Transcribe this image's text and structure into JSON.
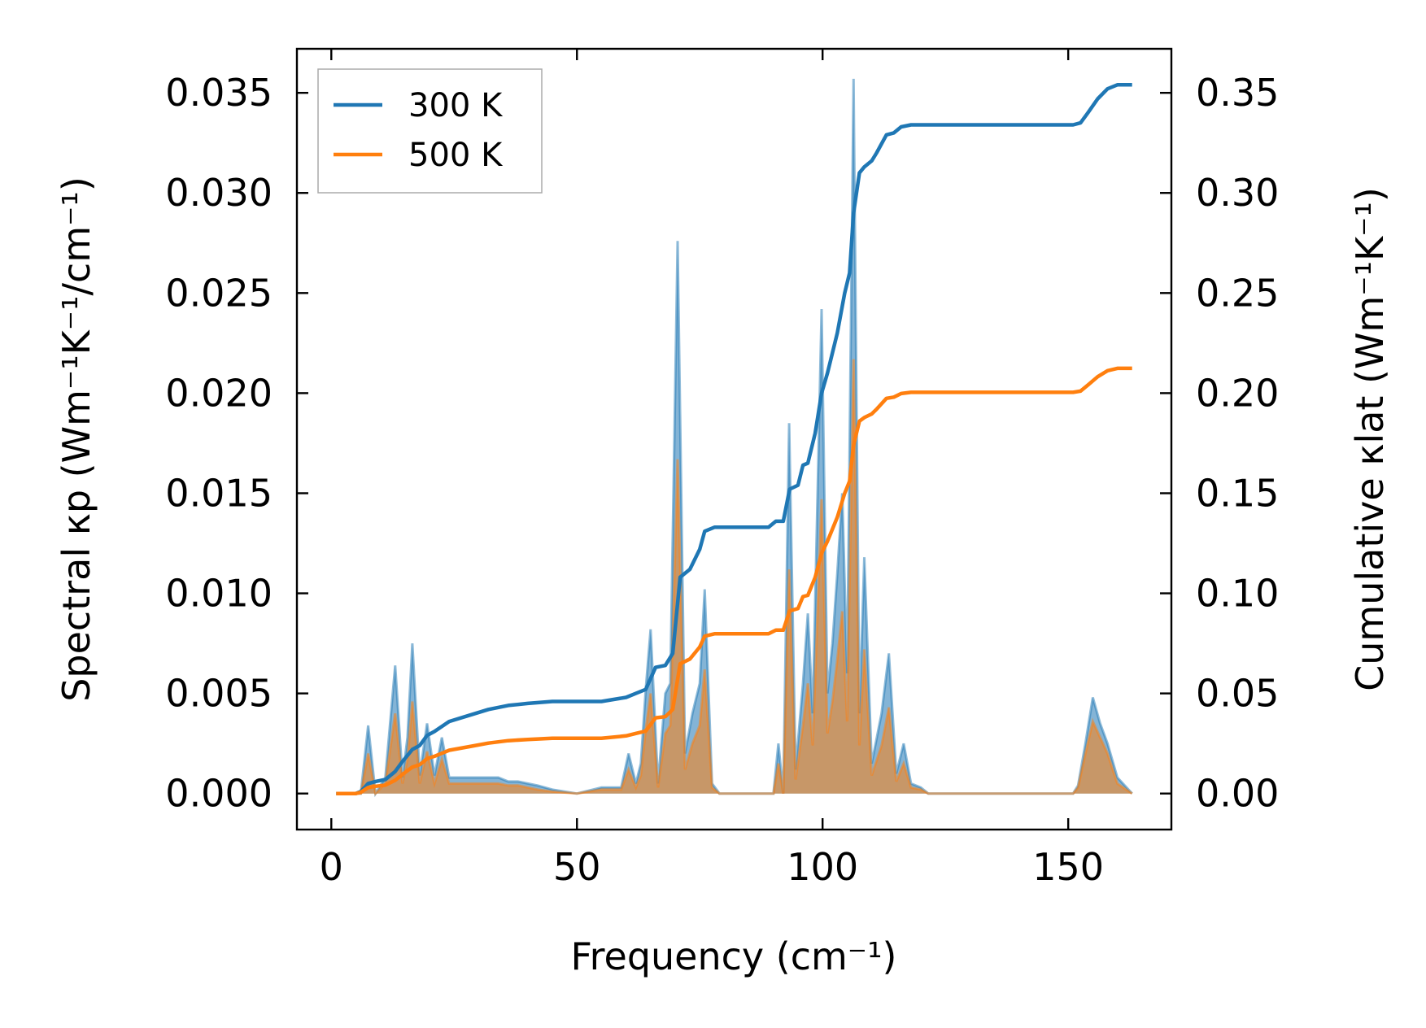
{
  "chart_data": {
    "type": "line",
    "xlabel": "Frequency (cm⁻¹)",
    "ylabel_left": "Spectral κp (Wm⁻¹K⁻¹/cm⁻¹)",
    "ylabel_right": "Cumulative κlat (Wm⁻¹K⁻¹)",
    "xlim": [
      -7,
      171
    ],
    "ylim_left": [
      -0.0018,
      0.0372
    ],
    "ylim_right": [
      -0.018,
      0.372
    ],
    "x_ticks": [
      0,
      50,
      100,
      150
    ],
    "x_tick_labels": [
      "0",
      "50",
      "100",
      "150"
    ],
    "y_left_ticks": [
      0,
      0.005,
      0.01,
      0.015,
      0.02,
      0.025,
      0.03,
      0.035
    ],
    "y_left_tick_labels": [
      "0.000",
      "0.005",
      "0.010",
      "0.015",
      "0.020",
      "0.025",
      "0.030",
      "0.035"
    ],
    "y_right_ticks": [
      0,
      0.05,
      0.1,
      0.15,
      0.2,
      0.25,
      0.3,
      0.35
    ],
    "y_right_tick_labels": [
      "0.00",
      "0.05",
      "0.10",
      "0.15",
      "0.20",
      "0.25",
      "0.30",
      "0.35"
    ],
    "legend": {
      "position": "top-left",
      "entries": [
        "300 K",
        "500 K"
      ]
    },
    "grid": false,
    "colors": {
      "300K": "#1f77b4",
      "500K": "#ff7f0e",
      "fill_300K": "#1f77b4",
      "fill_500K": "#ff7f0e"
    },
    "series": [
      {
        "name": "300 K",
        "kind": "spectral-fill",
        "axis": "left",
        "x": [
          1,
          6,
          7.5,
          9,
          11,
          13,
          14.5,
          15.5,
          16.5,
          18,
          19.5,
          21,
          22.5,
          24,
          26,
          28,
          30,
          32,
          34,
          36,
          38,
          40,
          42,
          45,
          50,
          55,
          59,
          60.5,
          62,
          63,
          64,
          65,
          66.5,
          68,
          69,
          70.5,
          72,
          73.5,
          75,
          76,
          77.5,
          79,
          90,
          91,
          92,
          93.2,
          94.5,
          96,
          97,
          98,
          99.8,
          101,
          102,
          103,
          104,
          105,
          106.3,
          107.5,
          108.5,
          110,
          112,
          113.5,
          115,
          116.5,
          118,
          120,
          121.5,
          151,
          152,
          153.5,
          155,
          156.5,
          158,
          160,
          163
        ],
        "values": [
          0,
          0,
          0.0034,
          0,
          0.0008,
          0.0064,
          0.0008,
          0.0028,
          0.0075,
          0.0009,
          0.0035,
          0.0009,
          0.0028,
          0.0008,
          0.0008,
          0.0008,
          0.0008,
          0.0008,
          0.0008,
          0.0006,
          0.0006,
          0.0005,
          0.0004,
          0.0002,
          0,
          0.0003,
          0.0003,
          0.002,
          0.0005,
          0.0015,
          0.0052,
          0.0082,
          0.0005,
          0.005,
          0.0055,
          0.0276,
          0.002,
          0.004,
          0.0055,
          0.0102,
          0.0005,
          0,
          0,
          0.0025,
          0,
          0.0185,
          0.0012,
          0.0055,
          0.009,
          0.004,
          0.0242,
          0.005,
          0.0075,
          0.011,
          0.015,
          0.006,
          0.0357,
          0.004,
          0.0118,
          0.0015,
          0.004,
          0.007,
          0.001,
          0.0025,
          0.0005,
          0.0003,
          0,
          0,
          0.0004,
          0.0025,
          0.0048,
          0.0035,
          0.0025,
          0.0008,
          0
        ]
      },
      {
        "name": "500 K",
        "kind": "spectral-fill",
        "axis": "left",
        "x": [
          1,
          6,
          7.5,
          9,
          11,
          13,
          14.5,
          15.5,
          16.5,
          18,
          19.5,
          21,
          22.5,
          24,
          26,
          28,
          30,
          32,
          34,
          36,
          38,
          40,
          42,
          45,
          50,
          55,
          59,
          60.5,
          62,
          63,
          64,
          65,
          66.5,
          68,
          69,
          70.5,
          72,
          73.5,
          75,
          76,
          77.5,
          79,
          90,
          91,
          92,
          93.2,
          94.5,
          96,
          97,
          98,
          99.8,
          101,
          102,
          103,
          104,
          105,
          106.3,
          107.5,
          108.5,
          110,
          112,
          113.5,
          115,
          116.5,
          118,
          120,
          121.5,
          151,
          152,
          153.5,
          155,
          156.5,
          158,
          160,
          163
        ],
        "values": [
          0,
          0,
          0.002,
          0,
          0.0005,
          0.004,
          0.0005,
          0.0017,
          0.0046,
          0.0005,
          0.0021,
          0.0005,
          0.0017,
          0.0005,
          0.0005,
          0.0005,
          0.0005,
          0.0005,
          0.0005,
          0.0004,
          0.0004,
          0.0003,
          0.0002,
          0.0001,
          0,
          0.0002,
          0.0002,
          0.0012,
          0.0003,
          0.0009,
          0.0032,
          0.005,
          0.0003,
          0.003,
          0.0034,
          0.0167,
          0.0012,
          0.0025,
          0.0034,
          0.0062,
          0.0003,
          0,
          0,
          0.0015,
          0,
          0.0112,
          0.0007,
          0.0034,
          0.0055,
          0.0024,
          0.0147,
          0.003,
          0.0046,
          0.0067,
          0.0091,
          0.0036,
          0.0217,
          0.0024,
          0.0072,
          0.0009,
          0.0024,
          0.0043,
          0.0006,
          0.0015,
          0.0003,
          0.0002,
          0,
          0,
          0.0003,
          0.002,
          0.0036,
          0.0028,
          0.002,
          0.0005,
          0
        ]
      },
      {
        "name": "300 K",
        "kind": "cumulative",
        "axis": "right",
        "x": [
          1,
          5,
          6,
          7.5,
          9,
          11,
          13,
          14.5,
          16.5,
          18,
          19.5,
          21,
          24,
          28,
          32,
          36,
          40,
          45,
          55,
          60,
          62,
          64,
          66,
          68,
          69.5,
          71,
          73,
          75,
          76,
          78,
          80,
          89,
          90.5,
          92,
          93.3,
          95,
          96,
          97,
          98.5,
          99.8,
          101,
          103,
          104.5,
          105.5,
          106.3,
          107.5,
          108.5,
          110,
          111,
          113,
          114.5,
          116,
          118,
          122,
          151,
          152.5,
          154,
          156,
          158,
          160,
          163
        ],
        "values": [
          0,
          0,
          0.001,
          0.005,
          0.006,
          0.007,
          0.011,
          0.016,
          0.022,
          0.024,
          0.029,
          0.031,
          0.036,
          0.039,
          0.042,
          0.044,
          0.045,
          0.046,
          0.046,
          0.048,
          0.05,
          0.052,
          0.063,
          0.064,
          0.07,
          0.108,
          0.112,
          0.122,
          0.131,
          0.133,
          0.133,
          0.133,
          0.136,
          0.136,
          0.152,
          0.154,
          0.164,
          0.165,
          0.18,
          0.2,
          0.21,
          0.23,
          0.25,
          0.26,
          0.29,
          0.31,
          0.313,
          0.316,
          0.32,
          0.329,
          0.33,
          0.333,
          0.334,
          0.334,
          0.334,
          0.335,
          0.34,
          0.347,
          0.352,
          0.354,
          0.354
        ]
      },
      {
        "name": "500 K",
        "kind": "cumulative",
        "axis": "right",
        "x": [
          1,
          5,
          6,
          7.5,
          9,
          11,
          13,
          14.5,
          16.5,
          18,
          19.5,
          21,
          24,
          28,
          32,
          36,
          40,
          45,
          55,
          60,
          62,
          64,
          66,
          68,
          69.5,
          71,
          73,
          75,
          76,
          78,
          80,
          89,
          90.5,
          92,
          93.3,
          95,
          96,
          97,
          98.5,
          99.8,
          101,
          103,
          104.5,
          105.5,
          106.3,
          107.5,
          108.5,
          110,
          111,
          113,
          114.5,
          116,
          118,
          122,
          151,
          152.5,
          154,
          156,
          158,
          160,
          163
        ],
        "values": [
          0,
          0,
          0.0006,
          0.003,
          0.0036,
          0.0042,
          0.0066,
          0.0096,
          0.0132,
          0.0144,
          0.0174,
          0.0186,
          0.0216,
          0.0234,
          0.0252,
          0.0264,
          0.027,
          0.0276,
          0.0276,
          0.0288,
          0.03,
          0.0312,
          0.0378,
          0.0384,
          0.042,
          0.0648,
          0.0672,
          0.0732,
          0.0786,
          0.0798,
          0.0798,
          0.0798,
          0.0816,
          0.0816,
          0.0912,
          0.0924,
          0.0984,
          0.099,
          0.108,
          0.12,
          0.126,
          0.138,
          0.15,
          0.156,
          0.174,
          0.186,
          0.1878,
          0.1896,
          0.192,
          0.1974,
          0.198,
          0.1998,
          0.2004,
          0.2004,
          0.2004,
          0.201,
          0.204,
          0.2082,
          0.2112,
          0.2124,
          0.2124
        ]
      }
    ]
  }
}
